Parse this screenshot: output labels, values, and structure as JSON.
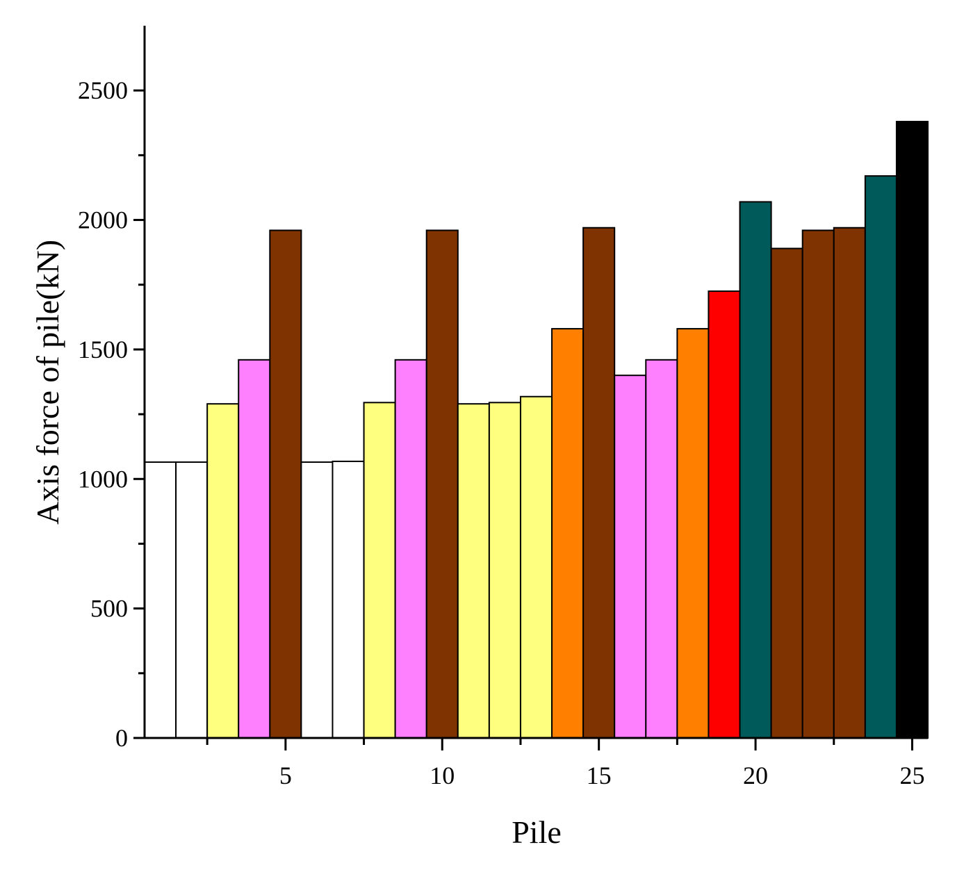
{
  "chart_data": {
    "type": "bar",
    "title": "",
    "xlabel": "Pile",
    "ylabel": "Axis force of pile(kN)",
    "categories": [
      1,
      2,
      3,
      4,
      5,
      6,
      7,
      8,
      9,
      10,
      11,
      12,
      13,
      14,
      15,
      16,
      17,
      18,
      19,
      20,
      21,
      22,
      23,
      24,
      25
    ],
    "values": [
      1065,
      1065,
      1290,
      1460,
      1960,
      1065,
      1068,
      1295,
      1460,
      1960,
      1290,
      1295,
      1318,
      1580,
      1970,
      1400,
      1460,
      1580,
      1725,
      2070,
      1890,
      1960,
      1970,
      2170,
      2380
    ],
    "bar_colors": [
      "#ffffff",
      "#ffffff",
      "#ffff7f",
      "#ff80ff",
      "#7f3300",
      "#ffffff",
      "#ffffff",
      "#ffff7f",
      "#ff80ff",
      "#7f3300",
      "#ffff7f",
      "#ffff7f",
      "#ffff7f",
      "#ff7f00",
      "#7f3300",
      "#ff80ff",
      "#ff80ff",
      "#ff7f00",
      "#ff0000",
      "#005a5a",
      "#7f3300",
      "#7f3300",
      "#7f3300",
      "#005a5a",
      "#000000"
    ],
    "xlim": [
      0.5,
      25.5
    ],
    "ylim": [
      0,
      2750
    ],
    "x_ticks": [
      5,
      10,
      15,
      20,
      25
    ],
    "x_tick_labels": [
      "5",
      "10",
      "15",
      "20",
      "25"
    ],
    "x_minor_ticks": [
      2.5,
      7.5,
      12.5,
      17.5,
      22.5
    ],
    "y_ticks": [
      0,
      500,
      1000,
      1500,
      2000,
      2500
    ],
    "y_tick_labels": [
      "0",
      "500",
      "1000",
      "1500",
      "2000",
      "2500"
    ],
    "y_minor_ticks": [
      250,
      750,
      1250,
      1750,
      2250
    ],
    "grid": false,
    "legend": "none"
  }
}
